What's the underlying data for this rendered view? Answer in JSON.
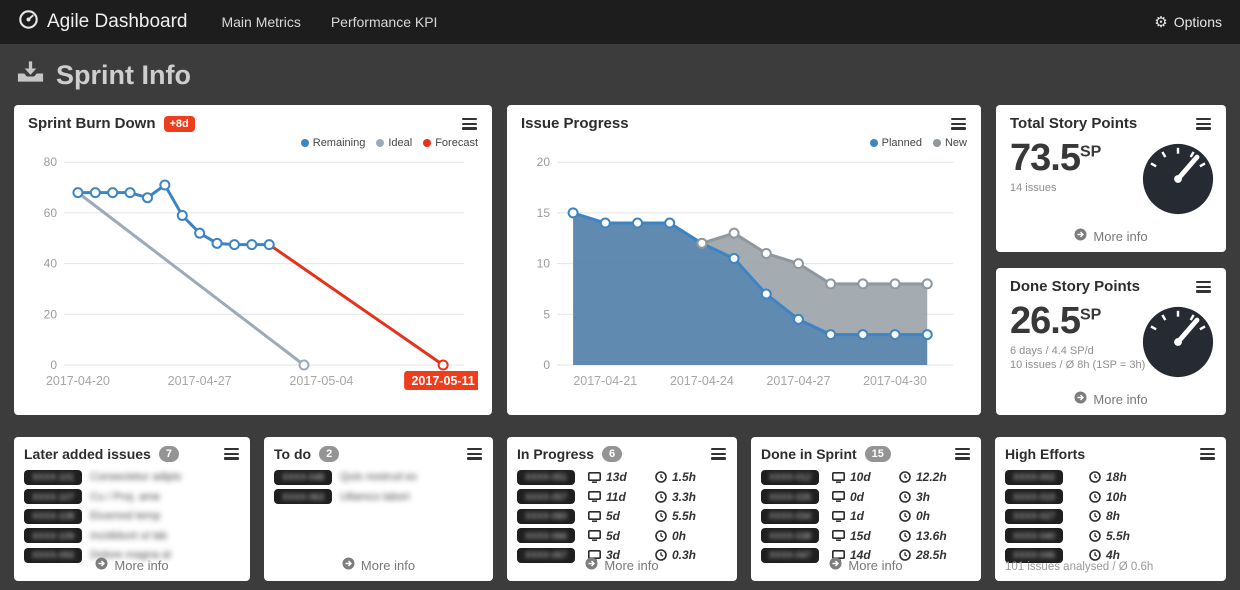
{
  "navbar": {
    "brand": "Agile Dashboard",
    "items": [
      {
        "label": "Main Metrics"
      },
      {
        "label": "Performance KPI"
      }
    ],
    "options_label": "Options"
  },
  "page": {
    "title": "Sprint Info"
  },
  "labels": {
    "more_info": "More info"
  },
  "colors": {
    "accent_red": "#ee3d1c",
    "gauge": "#262b33",
    "count_badge": "#949494",
    "key_badge": "#1f1f1f"
  },
  "panels": {
    "burndown": {
      "title": "Sprint Burn Down",
      "badge": "+8d"
    },
    "issue_progress": {
      "title": "Issue Progress"
    },
    "total_story_points": {
      "title": "Total Story Points",
      "value": "73.5",
      "unit": "SP",
      "sub1": "14 issues"
    },
    "done_story_points": {
      "title": "Done Story Points",
      "value": "26.5",
      "unit": "SP",
      "sub1": "6 days / 4.4 SP/d",
      "sub2": "10 issues / Ø 8h (1SP = 3h)"
    },
    "later_added": {
      "title": "Later added issues",
      "count": "7",
      "rows": [
        {
          "key_redacted": "XXXX-101",
          "text_redacted": "Consectetur adipis"
        },
        {
          "key_redacted": "XXXX-107",
          "text_redacted": "Cu / Proj. ame"
        },
        {
          "key_redacted": "XXXX-108",
          "text_redacted": "Eiusmod temp"
        },
        {
          "key_redacted": "XXXX-109",
          "text_redacted": "Incididunt ut lab"
        },
        {
          "key_redacted": "XXXX-093",
          "text_redacted": "Dolore magna al"
        }
      ]
    },
    "todo": {
      "title": "To do",
      "count": "2",
      "rows": [
        {
          "key_redacted": "XXXX-048",
          "text_redacted": "Quis nostrud ex"
        },
        {
          "key_redacted": "XXXX-063",
          "text_redacted": "Ullamco labori"
        }
      ]
    },
    "in_progress": {
      "title": "In Progress",
      "count": "6",
      "rows": [
        {
          "key_redacted": "XXXX-051",
          "days": "13d",
          "hours": "1.5h"
        },
        {
          "key_redacted": "XXXX-057",
          "days": "11d",
          "hours": "3.3h"
        },
        {
          "key_redacted": "XXXX-060",
          "days": "5d",
          "hours": "5.5h"
        },
        {
          "key_redacted": "XXXX-066",
          "days": "5d",
          "hours": "0h"
        },
        {
          "key_redacted": "XXXX-067",
          "days": "3d",
          "hours": "0.3h"
        }
      ]
    },
    "done_in_sprint": {
      "title": "Done in Sprint",
      "count": "15",
      "rows": [
        {
          "key_redacted": "XXXX-012",
          "days": "10d",
          "hours": "12.2h"
        },
        {
          "key_redacted": "XXXX-026",
          "days": "0d",
          "hours": "3h"
        },
        {
          "key_redacted": "XXXX-034",
          "days": "1d",
          "hours": "0h"
        },
        {
          "key_redacted": "XXXX-038",
          "days": "15d",
          "hours": "13.6h"
        },
        {
          "key_redacted": "XXXX-047",
          "days": "14d",
          "hours": "28.5h"
        }
      ]
    },
    "high_efforts": {
      "title": "High Efforts",
      "rows": [
        {
          "key_redacted": "XXXX-002",
          "hours": "18h"
        },
        {
          "key_redacted": "XXXX-019",
          "hours": "10h"
        },
        {
          "key_redacted": "XXXX-027",
          "hours": "8h"
        },
        {
          "key_redacted": "XXXX-040",
          "hours": "5.5h"
        },
        {
          "key_redacted": "XXXX-046",
          "hours": "4h"
        }
      ],
      "footer": "101 issues analysed / Ø 0.6h"
    }
  },
  "chart_data": [
    {
      "id": "burndown",
      "type": "line",
      "title": "Sprint Burn Down",
      "ylabel": "",
      "xlabel": "",
      "ylim": [
        0,
        86
      ],
      "xlim": [
        -0.8,
        22.2
      ],
      "y_ticks": [
        0,
        20,
        40,
        60,
        80
      ],
      "x_ticks": [
        {
          "x": 0,
          "label": "2017-04-20"
        },
        {
          "x": 7,
          "label": "2017-04-27"
        },
        {
          "x": 14,
          "label": "2017-05-04"
        },
        {
          "x": 21,
          "label": "2017-05-11",
          "highlight": true
        }
      ],
      "accent": "#ee3d1c",
      "legend_position": "top-right",
      "grid": true,
      "series": [
        {
          "name": "Remaining",
          "color": "#3d84c4",
          "marker": "all",
          "x": [
            0,
            1,
            2,
            3,
            4,
            5,
            6,
            7,
            8,
            9,
            10,
            11
          ],
          "y": [
            68,
            68,
            68,
            68,
            66,
            71,
            59,
            52,
            48,
            47.5,
            47.5,
            47.5
          ]
        },
        {
          "name": "Ideal",
          "color": "#9cabb9",
          "marker": "end",
          "x": [
            0,
            13
          ],
          "y": [
            68,
            0
          ]
        },
        {
          "name": "Forecast",
          "color": "#e5321c",
          "marker": "end",
          "x": [
            11,
            21
          ],
          "y": [
            47.5,
            0
          ]
        }
      ]
    },
    {
      "id": "issue_progress",
      "type": "area",
      "title": "Issue Progress",
      "ylabel": "",
      "xlabel": "",
      "ylim": [
        0,
        21.5
      ],
      "xlim": [
        -0.5,
        11.8
      ],
      "y_ticks": [
        0,
        5,
        10,
        15,
        20
      ],
      "x_ticks": [
        {
          "x": 1,
          "label": "2017-04-21"
        },
        {
          "x": 4,
          "label": "2017-04-24"
        },
        {
          "x": 7,
          "label": "2017-04-27"
        },
        {
          "x": 10,
          "label": "2017-04-30"
        }
      ],
      "legend_position": "top-right",
      "grid": true,
      "series": [
        {
          "name": "Planned",
          "color": "#3d84c4",
          "fill": "#4a7aa5",
          "fill_opacity": 0.88,
          "marker": "all",
          "area": "to-zero",
          "x": [
            0,
            1,
            2,
            3,
            4,
            5,
            6,
            7,
            8,
            9,
            10,
            11
          ],
          "y": [
            15,
            14,
            14,
            14,
            12,
            10.5,
            7,
            4.5,
            3,
            3,
            3,
            3
          ]
        },
        {
          "name": "New",
          "color": "#8f989f",
          "fill": "#99a0a6",
          "fill_opacity": 0.88,
          "marker": "all",
          "area": "to-series-0",
          "x": [
            4,
            5,
            6,
            7,
            8,
            9,
            10,
            11
          ],
          "y": [
            12,
            13,
            11,
            10,
            8,
            8,
            8,
            8
          ]
        }
      ]
    }
  ]
}
